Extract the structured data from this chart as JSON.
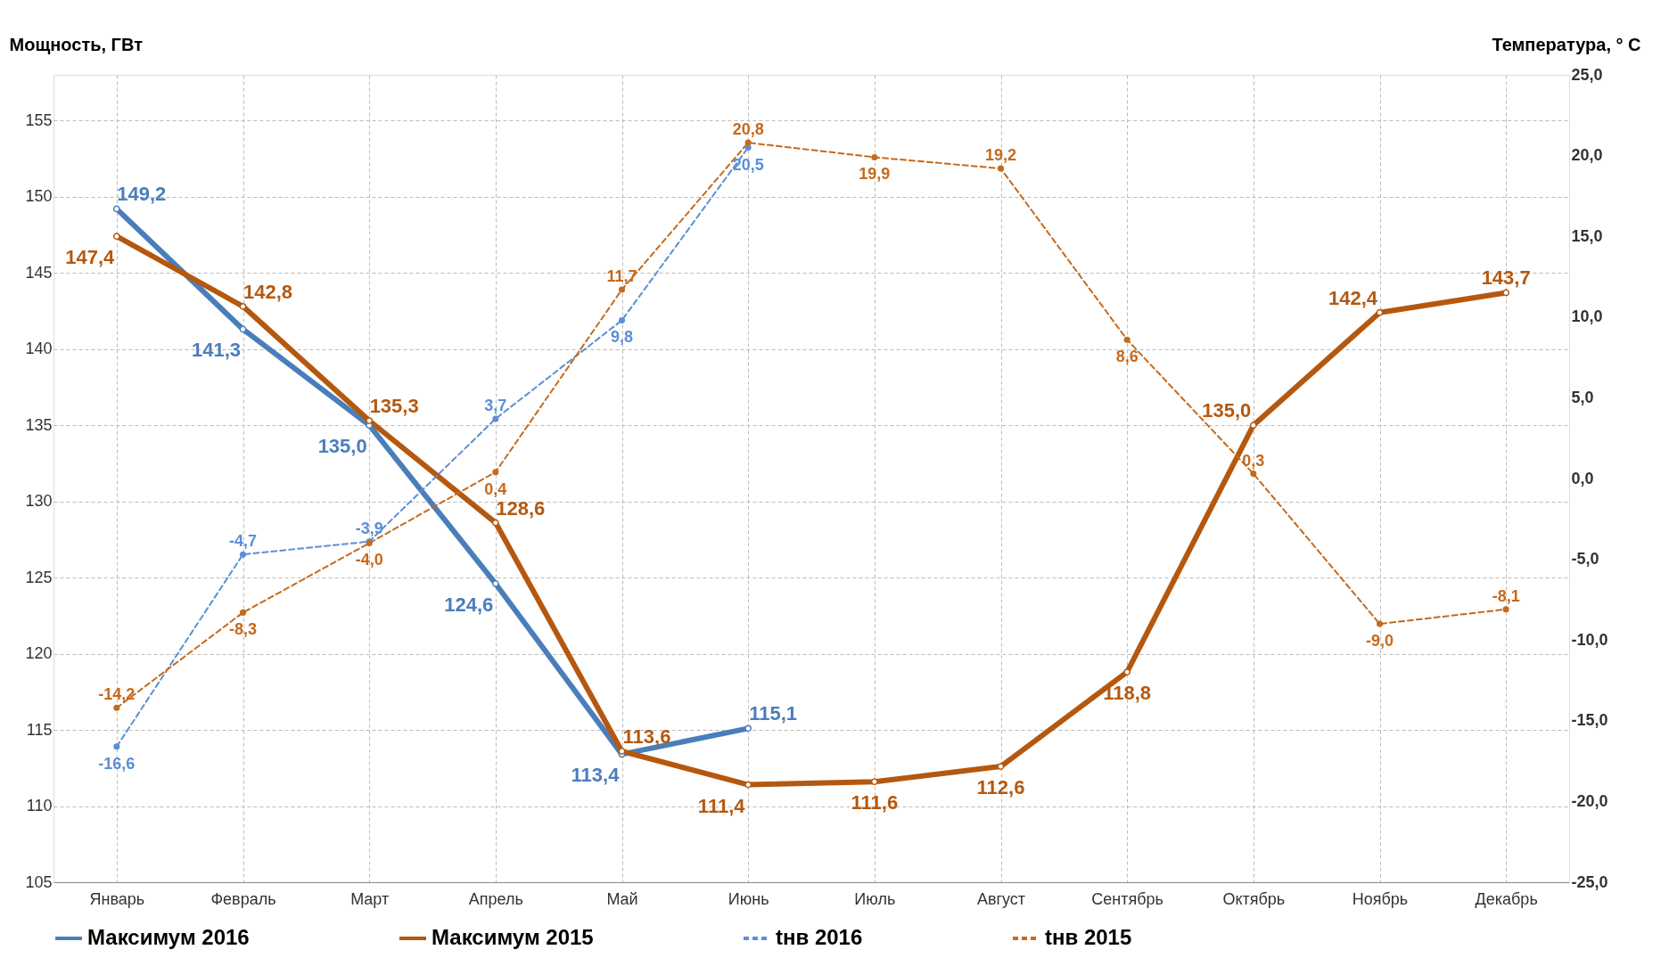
{
  "chart_data": {
    "type": "line",
    "categories": [
      "Январь",
      "Февраль",
      "Март",
      "Апрель",
      "Май",
      "Июнь",
      "Июль",
      "Август",
      "Сентябрь",
      "Октябрь",
      "Ноябрь",
      "Декабрь"
    ],
    "ylabel": "Мощность, ГВт",
    "y2label": "Температура, ° С",
    "ylim": [
      105,
      158
    ],
    "yticks": [
      105,
      110,
      115,
      120,
      125,
      130,
      135,
      140,
      145,
      150,
      155
    ],
    "y2lim": [
      -25,
      25
    ],
    "y2ticks": [
      {
        "value": -25,
        "label": "-25,0"
      },
      {
        "value": -20,
        "label": "-20,0"
      },
      {
        "value": -15,
        "label": "-15,0"
      },
      {
        "value": -10,
        "label": "-10,0"
      },
      {
        "value": -5,
        "label": "-5,0"
      },
      {
        "value": 0,
        "label": "0,0"
      },
      {
        "value": 5,
        "label": "5,0"
      },
      {
        "value": 10,
        "label": "10,0"
      },
      {
        "value": 15,
        "label": "15,0"
      },
      {
        "value": 20,
        "label": "20,0"
      },
      {
        "value": 25,
        "label": "25,0"
      }
    ],
    "grid": true,
    "legend": "bottom",
    "marker": "circle",
    "series": [
      {
        "name": "Максимум 2016",
        "color": "#4a7ebb",
        "line_style": "solid",
        "values": [
          149.2,
          141.3,
          135.0,
          124.6,
          113.4,
          115.1,
          null,
          null,
          null,
          null,
          null,
          null
        ],
        "value_labels": [
          "149,2",
          "141,3",
          "135,0",
          "124,6",
          "113,4",
          "115,1",
          null,
          null,
          null,
          null,
          null,
          null
        ]
      },
      {
        "name": "Максимум 2015",
        "color": "#b5580f",
        "line_style": "solid",
        "values": [
          147.4,
          142.8,
          135.3,
          128.6,
          113.6,
          111.4,
          111.6,
          112.6,
          118.8,
          135.0,
          142.4,
          143.7
        ],
        "value_labels": [
          "147,4",
          "142,8",
          "135,3",
          "128,6",
          "113,6",
          "111,4",
          "111,6",
          "112,6",
          "118,8",
          "135,0",
          "142,4",
          "143,7"
        ]
      },
      {
        "name": "tнв 2016",
        "color": "#5b8fd6",
        "line_style": "dashed",
        "axis": "y2",
        "values": [
          -16.6,
          -4.7,
          -3.9,
          3.7,
          9.8,
          20.5,
          null,
          null,
          null,
          null,
          null,
          null
        ],
        "value_labels": [
          "-16,6",
          "-4,7",
          "-3,9",
          "3,7",
          "9,8",
          "20,5",
          null,
          null,
          null,
          null,
          null,
          null
        ]
      },
      {
        "name": "tнв 2015",
        "color": "#c56a1c",
        "line_style": "dashed",
        "axis": "y2",
        "values": [
          -14.2,
          -8.3,
          -4.0,
          0.4,
          11.7,
          20.8,
          19.9,
          19.2,
          8.6,
          0.3,
          -9.0,
          -8.1
        ],
        "value_labels": [
          "-14,2",
          "-8,3",
          "-4,0",
          "0,4",
          "11,7",
          "20,8",
          "19,9",
          "19,2",
          "8,6",
          "0,3",
          "-9,0",
          "-8,1"
        ]
      }
    ]
  }
}
